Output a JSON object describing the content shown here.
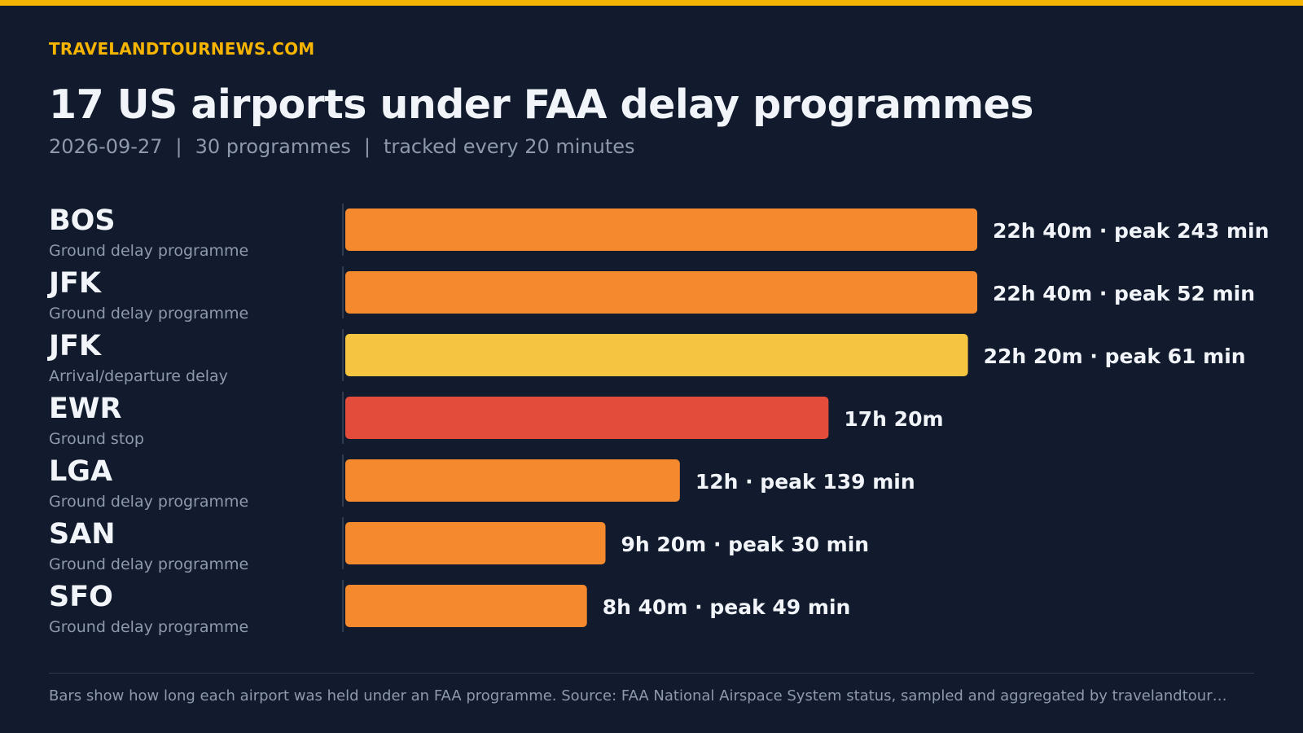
{
  "brand": "TRAVELANDTOURNEWS.COM",
  "title": "17 US airports under FAA delay programmes",
  "subtitle": {
    "date": "2026-09-27",
    "separator": "|",
    "programmes": "30 programmes",
    "tracking": "tracked every 20 minutes"
  },
  "colors": {
    "background": "#111b2d",
    "accent": "#f5b400",
    "ground_delay": "#f5892e",
    "arrival_departure_delay": "#f5c441",
    "ground_stop": "#e34b3b",
    "text": "#f1f4f8",
    "muted": "#8e99ad"
  },
  "chart_data": {
    "type": "bar",
    "orientation": "horizontal",
    "unit": "hours held under FAA programme",
    "xlim": [
      0,
      22.667
    ],
    "grid": false,
    "legend": "none",
    "categories": [
      "BOS",
      "JFK",
      "JFK",
      "EWR",
      "LGA",
      "SAN",
      "SFO"
    ],
    "rows": [
      {
        "airport": "BOS",
        "programme": "Ground delay programme",
        "hours": 22.667,
        "duration_label": "22h 40m",
        "peak_label": "peak 243 min",
        "color": "#f5892e"
      },
      {
        "airport": "JFK",
        "programme": "Ground delay programme",
        "hours": 22.667,
        "duration_label": "22h 40m",
        "peak_label": "peak 52 min",
        "color": "#f5892e"
      },
      {
        "airport": "JFK",
        "programme": "Arrival/departure delay",
        "hours": 22.333,
        "duration_label": "22h 20m",
        "peak_label": "peak 61 min",
        "color": "#f5c441"
      },
      {
        "airport": "EWR",
        "programme": "Ground stop",
        "hours": 17.333,
        "duration_label": "17h 20m",
        "peak_label": "",
        "color": "#e34b3b"
      },
      {
        "airport": "LGA",
        "programme": "Ground delay programme",
        "hours": 12,
        "duration_label": "12h",
        "peak_label": "peak 139 min",
        "color": "#f5892e"
      },
      {
        "airport": "SAN",
        "programme": "Ground delay programme",
        "hours": 9.333,
        "duration_label": "9h 20m",
        "peak_label": "peak 30 min",
        "color": "#f5892e"
      },
      {
        "airport": "SFO",
        "programme": "Ground delay programme",
        "hours": 8.667,
        "duration_label": "8h 40m",
        "peak_label": "peak 49 min",
        "color": "#f5892e"
      }
    ],
    "value_separator": "·"
  },
  "footnote": "Bars show how long each airport was held under an FAA programme. Source: FAA National Airspace System status, sampled and aggregated by travelandtour…"
}
